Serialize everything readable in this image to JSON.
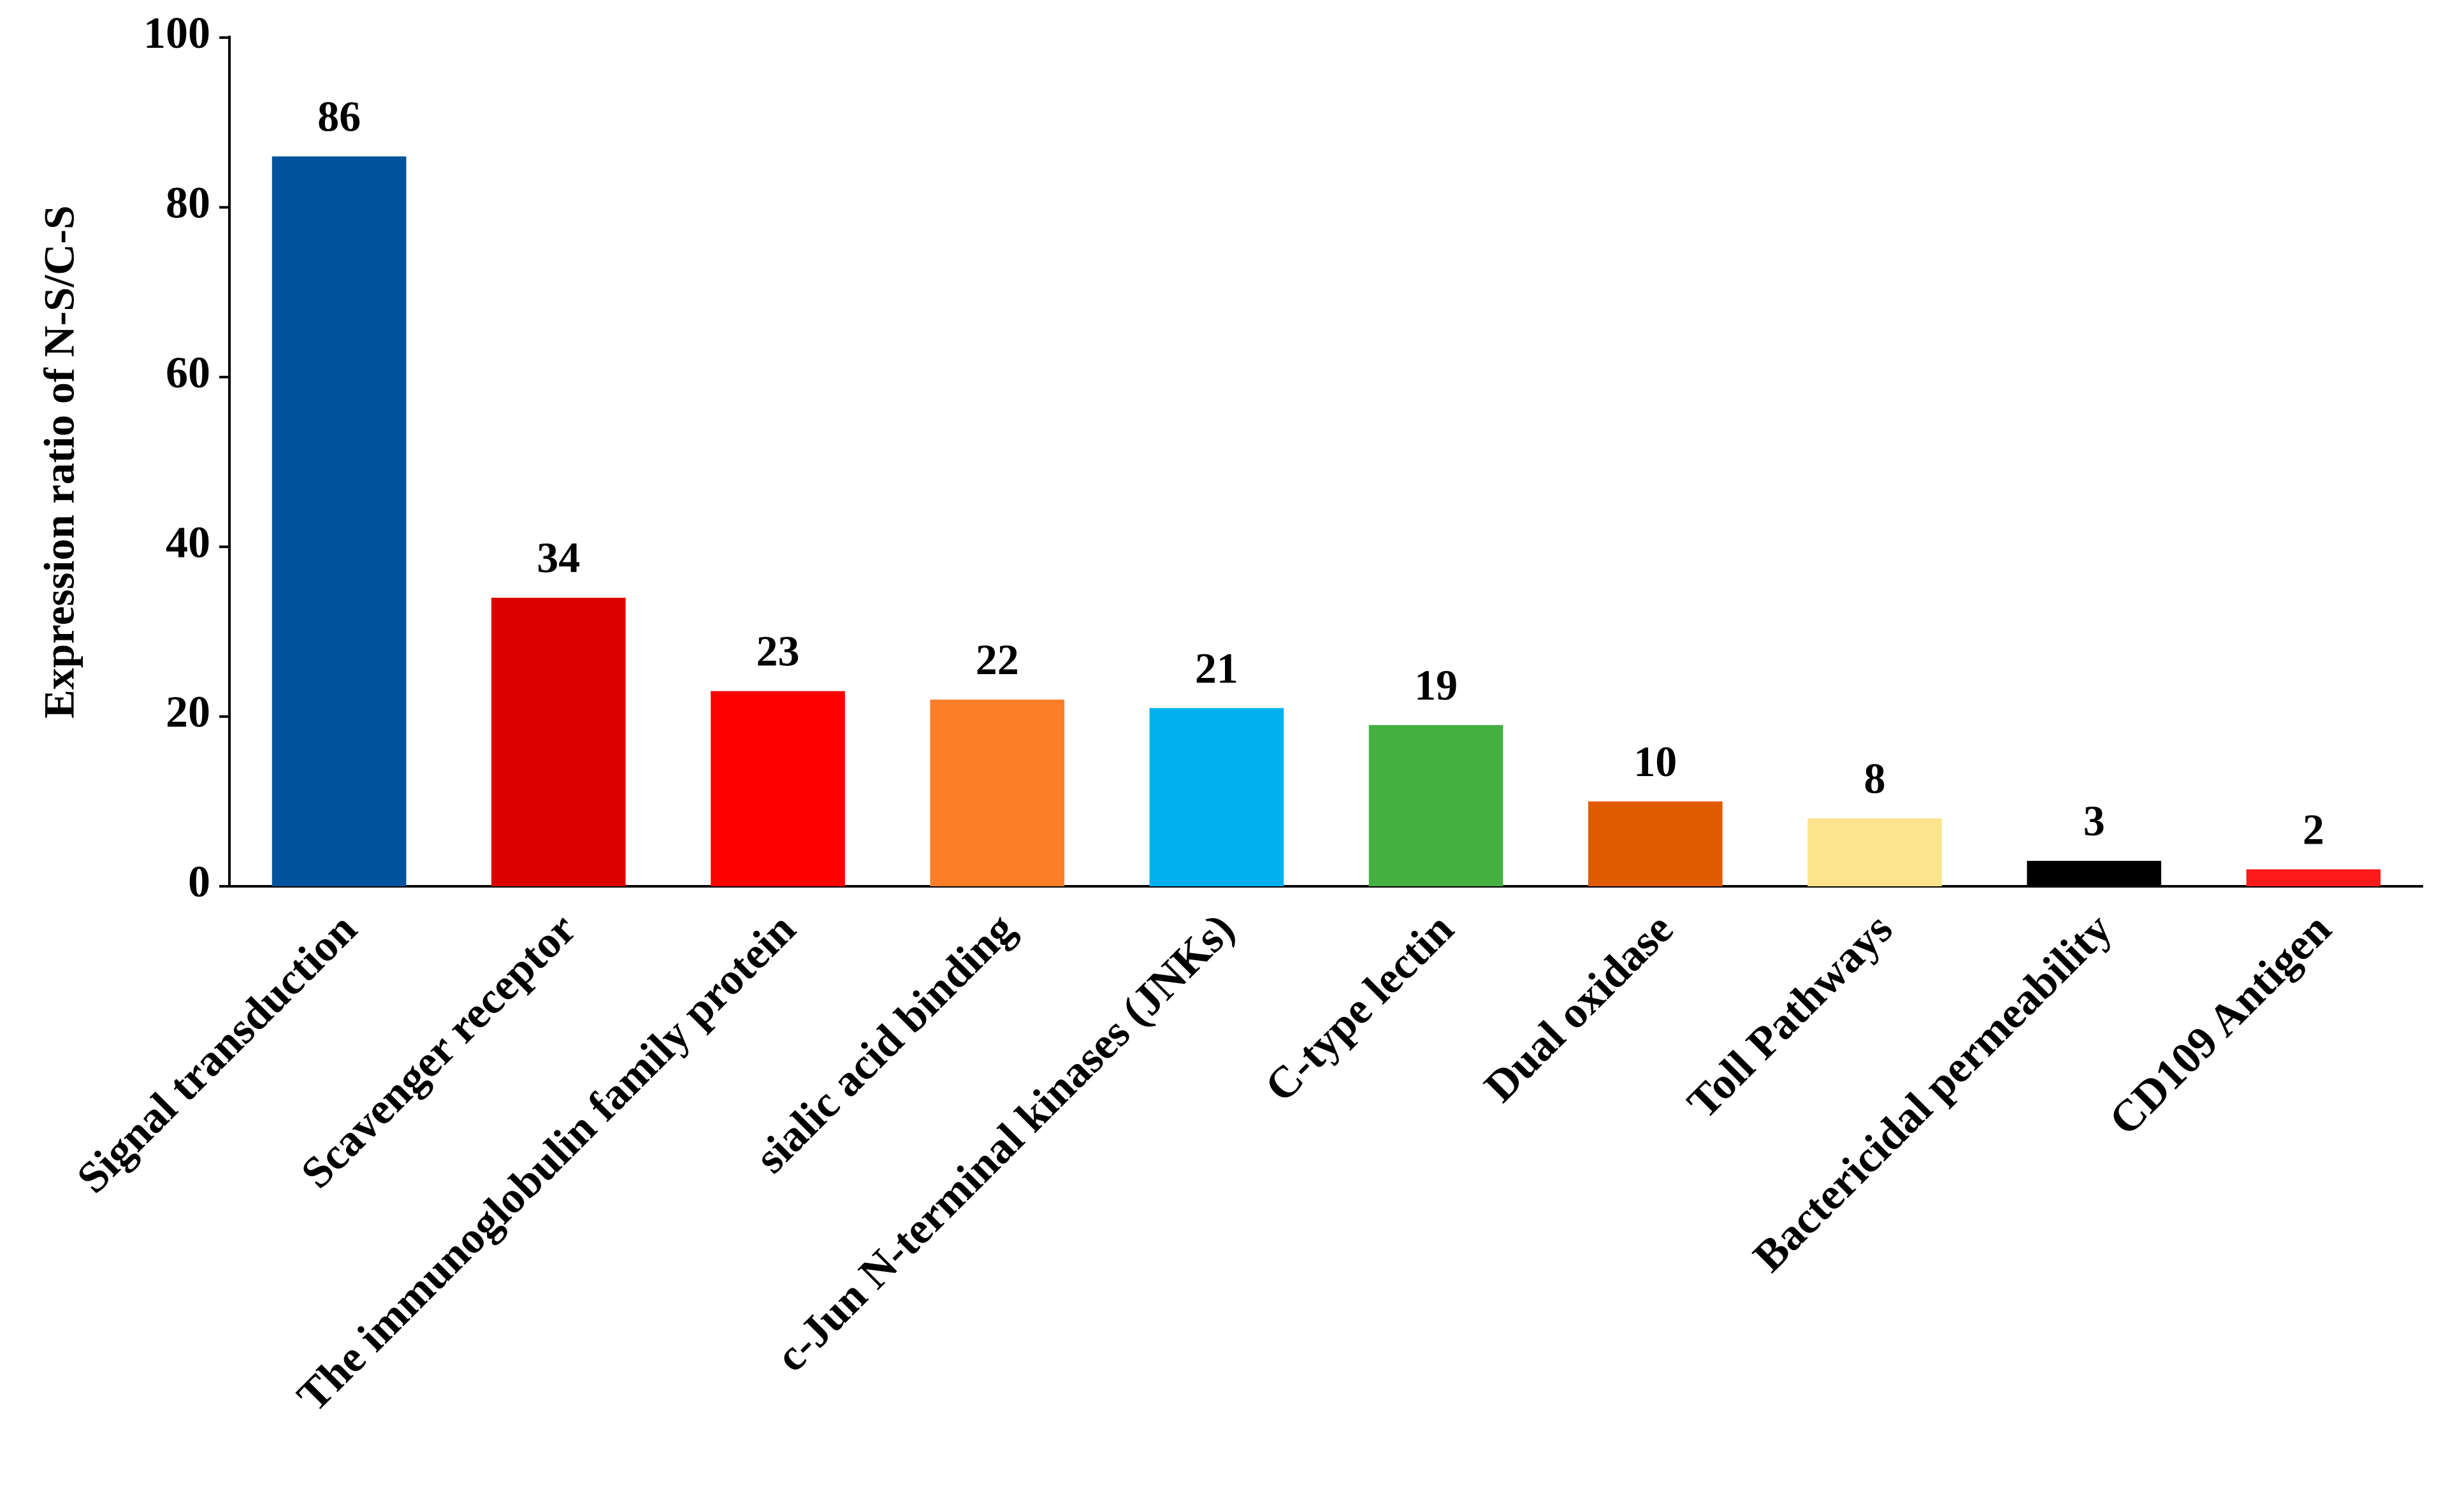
{
  "chart_data": {
    "type": "bar",
    "y_label": "Expression ratio of N-S/C-S",
    "categories": [
      "Signal transduction",
      "Scavenger receptor",
      "The immunoglobulin family protein",
      "sialic acid binding",
      "c-Jun N-terminal kinases (JNKs)",
      "C-type lectin",
      "Dual oxidase",
      "Toll Pathways",
      "Bactericidal permeability",
      "CD109 Antigen"
    ],
    "values": [
      86,
      34,
      23,
      22,
      21,
      19,
      10,
      8,
      3,
      2
    ],
    "colors": [
      "#00539c",
      "#dd0000",
      "#ff0000",
      "#fd7e29",
      "#00b0f0",
      "#43b03f",
      "#e05a00",
      "#fde38c",
      "#000000",
      "#ff1a1a"
    ],
    "ylim": [
      0,
      100
    ],
    "yticks": [
      0,
      20,
      40,
      60,
      80,
      100
    ],
    "grid": false
  }
}
